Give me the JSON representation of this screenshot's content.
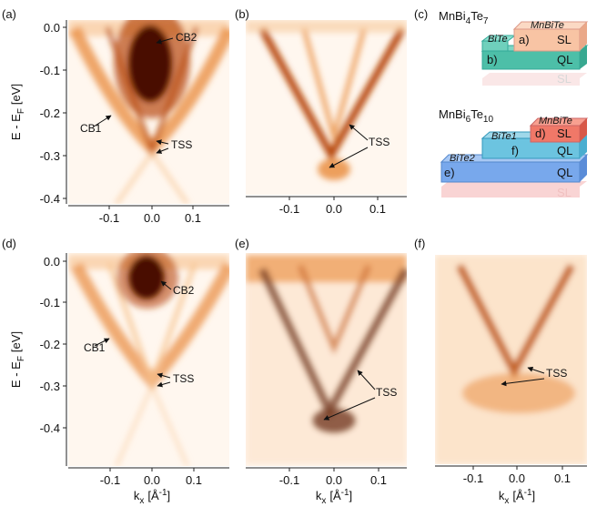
{
  "plots": [
    {
      "label": "(a)",
      "yticks": [
        "0.0",
        "-0.1",
        "-0.2",
        "-0.3",
        "-0.4"
      ],
      "xticks": [
        "-0.1",
        "0.0",
        "0.1"
      ],
      "annotations": [
        "CB2",
        "CB1",
        "TSS"
      ],
      "y_label": {
        "text": "E - E",
        "sub": "F",
        "unit": "[eV]"
      }
    },
    {
      "label": "(b)",
      "xticks": [
        "-0.1",
        "0.0",
        "0.1"
      ],
      "annotations": [
        "TSS"
      ]
    },
    {
      "label": "(d)",
      "yticks": [
        "0.0",
        "-0.1",
        "-0.2",
        "-0.3",
        "-0.4"
      ],
      "xticks": [
        "-0.1",
        "0.0",
        "0.1"
      ],
      "annotations": [
        "CB2",
        "CB1",
        "TSS"
      ],
      "y_label": {
        "text": "E - E",
        "sub": "F",
        "unit": "[eV]"
      },
      "x_label": {
        "text": "k",
        "sub": "x",
        "unit": "[Å",
        "sup": "-1",
        "end": "]"
      }
    },
    {
      "label": "(e)",
      "xticks": [
        "-0.1",
        "0.0",
        "0.1"
      ],
      "annotations": [
        "TSS"
      ],
      "x_label": {
        "text": "k",
        "sub": "x",
        "unit": "[Å",
        "sup": "-1",
        "end": "]"
      }
    },
    {
      "label": "(f)",
      "xticks": [
        "-0.1",
        "0.0",
        "0.1"
      ],
      "annotations": [
        "TSS"
      ],
      "x_label": {
        "text": "k",
        "sub": "x",
        "unit": "[Å",
        "sup": "-1",
        "end": "]"
      }
    }
  ],
  "diagram": {
    "label": "(c)",
    "compounds": [
      {
        "name": [
          "MnBi",
          "4",
          "Te",
          "7"
        ],
        "layers": [
          "MnBiTe",
          "a)",
          "SL",
          "BiTe",
          "b)",
          "QL",
          "SL"
        ]
      },
      {
        "name": [
          "MnBi",
          "6",
          "Te",
          "10"
        ],
        "layers": [
          "MnBiTe",
          "d)",
          "SL",
          "BiTe1",
          "f)",
          "QL",
          "BiTe2",
          "e)",
          "QL",
          "SL"
        ]
      }
    ]
  }
}
